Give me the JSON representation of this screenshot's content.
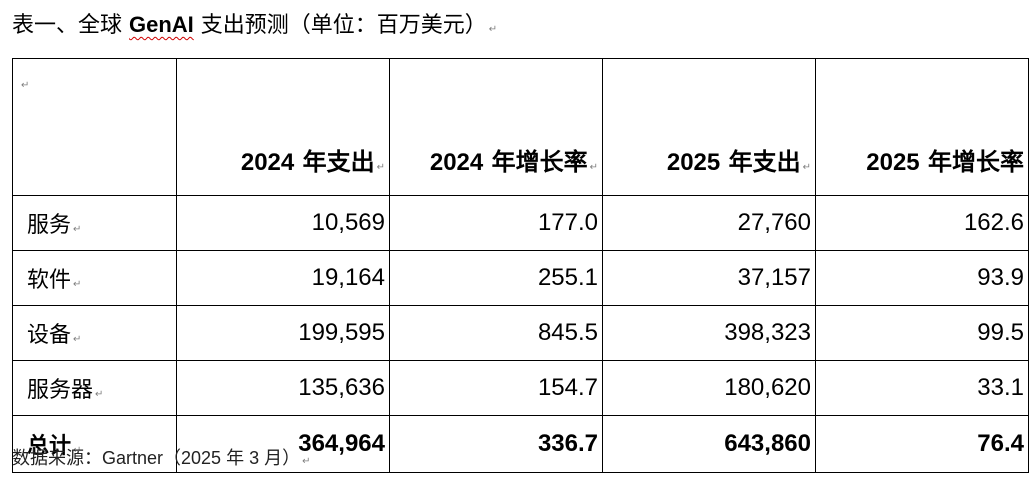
{
  "title": {
    "prefix": "表一、全球 ",
    "brand": "GenAI",
    "suffix": " 支出预测（单位：百万美元）"
  },
  "table": {
    "columns": [
      {
        "year": "2024",
        "label": " 年支出"
      },
      {
        "year": "2024",
        "label": " 年增长率"
      },
      {
        "year": "2025",
        "label": " 年支出"
      },
      {
        "year": "2025",
        "label": " 年增长率"
      }
    ],
    "rows": [
      {
        "name": "服务",
        "values": [
          "10,569",
          "177.0",
          "27,760",
          "162.6"
        ]
      },
      {
        "name": "软件",
        "values": [
          "19,164",
          "255.1",
          "37,157",
          "93.9"
        ]
      },
      {
        "name": "设备",
        "values": [
          "199,595",
          "845.5",
          "398,323",
          "99.5"
        ]
      },
      {
        "name": "服务器",
        "values": [
          "135,636",
          "154.7",
          "180,620",
          "33.1"
        ]
      }
    ],
    "total": {
      "name": "总计",
      "values": [
        "364,964",
        "336.7",
        "643,860",
        "76.4"
      ]
    }
  },
  "footer": {
    "source_label": "数据来源：",
    "source_value": "Gartner（2025 年 3 月）"
  },
  "paragraph_mark": "↵"
}
